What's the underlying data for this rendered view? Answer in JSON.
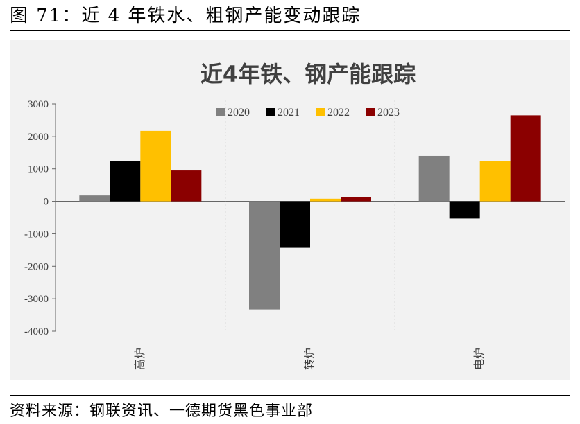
{
  "figure": {
    "caption": "图 71：近 4 年铁水、粗钢产能变动跟踪",
    "source": "资料来源：钢联资讯、一德期货黑色事业部"
  },
  "chart_data": {
    "type": "bar",
    "title": "近4年铁、钢产能跟踪",
    "xlabel": "",
    "ylabel": "",
    "categories": [
      "高炉",
      "转炉",
      "电炉"
    ],
    "series": [
      {
        "name": "2020",
        "color": "#808080",
        "values": [
          180,
          -3330,
          1400
        ]
      },
      {
        "name": "2021",
        "color": "#000000",
        "values": [
          1230,
          -1430,
          -530
        ]
      },
      {
        "name": "2022",
        "color": "#ffc000",
        "values": [
          2170,
          80,
          1250
        ]
      },
      {
        "name": "2023",
        "color": "#8b0000",
        "values": [
          950,
          120,
          2650
        ]
      }
    ],
    "ylim": [
      -4000,
      3000
    ],
    "yticks": [
      3000,
      2000,
      1000,
      0,
      -1000,
      -2000,
      -3000,
      -4000
    ],
    "ytick_labels": [
      "3000",
      "2000",
      "1000",
      "0",
      "-1000",
      "-2000",
      "-3000",
      "-4000"
    ],
    "grid": false,
    "category_separators": true,
    "legend_position": "top-center"
  }
}
